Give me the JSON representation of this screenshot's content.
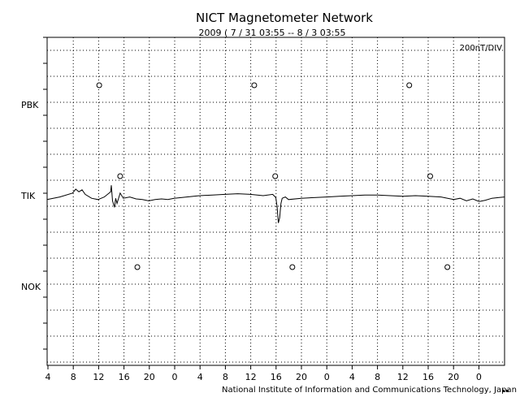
{
  "chart_data": {
    "type": "line",
    "title": "NICT Magnetometer Network",
    "subtitle": "2009 ( 7 / 31   03:55 --  8 / 3   03:55",
    "scale_label": "200nT/DIV",
    "credit": "National Institute of Information and Communications Technology, Japan",
    "xlabel": "",
    "ylabel": "",
    "grid": true,
    "x_tick_labels": [
      "4",
      "8",
      "12",
      "16",
      "20",
      "0",
      "4",
      "8",
      "12",
      "16",
      "20",
      "0",
      "4",
      "8",
      "12",
      "16",
      "20",
      "0"
    ],
    "stations": [
      {
        "name": "PBK",
        "markers_hours_from_start": [
          8.2,
          32.6,
          57.0
        ],
        "series": []
      },
      {
        "name": "TIK",
        "markers_hours_from_start": [
          11.5,
          35.9,
          60.3
        ],
        "series": [
          {
            "name": "",
            "hours_from_start": [
              0,
              2,
              4,
              4.5,
              5,
              5.5,
              6,
              7,
              8,
              9,
              10,
              10.1,
              10.3,
              10.6,
              10.8,
              11,
              11.5,
              12,
              13,
              14,
              15,
              16,
              17,
              18,
              19,
              20,
              22,
              24,
              26,
              28,
              30,
              32,
              34,
              35.5,
              36,
              36.2,
              36.4,
              36.6,
              36.8,
              37,
              37.5,
              38,
              40,
              42,
              44,
              46,
              48,
              50,
              52,
              54,
              56,
              58,
              60,
              62,
              64,
              65,
              66,
              67,
              68,
              69,
              70,
              71,
              72
            ],
            "values_nT": [
              -30,
              -10,
              20,
              50,
              30,
              45,
              10,
              -20,
              -30,
              -10,
              30,
              80,
              -40,
              -90,
              -20,
              -60,
              20,
              -20,
              -10,
              -25,
              -30,
              -40,
              -30,
              -25,
              -30,
              -20,
              -10,
              0,
              5,
              10,
              15,
              10,
              0,
              10,
              -15,
              -90,
              -210,
              -170,
              -60,
              -20,
              -10,
              -30,
              -20,
              -15,
              -10,
              -5,
              0,
              5,
              5,
              0,
              -5,
              0,
              -5,
              -10,
              -30,
              -20,
              -40,
              -25,
              -45,
              -35,
              -20,
              -15,
              -10
            ]
          }
        ]
      },
      {
        "name": "NOK",
        "markers_hours_from_start": [
          14.2,
          38.6,
          63.0
        ],
        "series": []
      }
    ]
  }
}
